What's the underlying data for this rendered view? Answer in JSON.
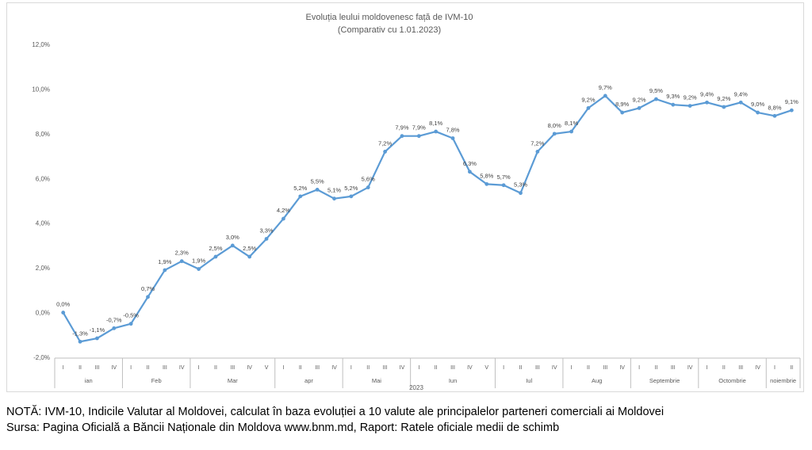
{
  "chart_data": {
    "type": "line",
    "title": "Evoluția leului moldovenesc față de IVM-10",
    "subtitle": "(Comparativ cu 1.01.2023)",
    "year_label": "2023",
    "ylim": [
      -2.0,
      12.0
    ],
    "yticks": [
      "-2,0%",
      "0,0%",
      "2,0%",
      "4,0%",
      "6,0%",
      "8,0%",
      "10,0%",
      "12,0%"
    ],
    "yticks_values": [
      -2,
      0,
      2,
      4,
      6,
      8,
      10,
      12
    ],
    "grid": false,
    "legend": "none",
    "line_color": "#5b9bd5",
    "months": [
      {
        "name": "ian",
        "weeks": [
          "I",
          "II",
          "III",
          "IV"
        ]
      },
      {
        "name": "Feb",
        "weeks": [
          "I",
          "II",
          "III",
          "IV"
        ]
      },
      {
        "name": "Mar",
        "weeks": [
          "I",
          "II",
          "III",
          "IV",
          "V"
        ]
      },
      {
        "name": "apr",
        "weeks": [
          "I",
          "II",
          "III",
          "IV"
        ]
      },
      {
        "name": "Mai",
        "weeks": [
          "I",
          "II",
          "III",
          "IV"
        ]
      },
      {
        "name": "Iun",
        "weeks": [
          "I",
          "II",
          "III",
          "IV",
          "V"
        ]
      },
      {
        "name": "Iul",
        "weeks": [
          "I",
          "II",
          "III",
          "IV"
        ]
      },
      {
        "name": "Aug",
        "weeks": [
          "I",
          "II",
          "III",
          "IV"
        ]
      },
      {
        "name": "Septembrie",
        "weeks": [
          "I",
          "II",
          "III",
          "IV"
        ]
      },
      {
        "name": "Octombrie",
        "weeks": [
          "I",
          "II",
          "III",
          "IV"
        ]
      },
      {
        "name": "noiembrie",
        "weeks": [
          "I",
          "II"
        ]
      }
    ],
    "values": [
      0.0,
      -1.3,
      -1.15,
      -0.7,
      -0.5,
      0.7,
      1.9,
      2.3,
      1.95,
      2.5,
      3.0,
      2.5,
      3.3,
      4.2,
      5.2,
      5.5,
      5.1,
      5.2,
      5.6,
      7.2,
      7.9,
      7.9,
      8.1,
      7.8,
      6.3,
      5.75,
      5.7,
      5.35,
      7.2,
      8.0,
      8.1,
      9.15,
      9.7,
      8.95,
      9.15,
      9.55,
      9.3,
      9.25,
      9.4,
      9.2,
      9.4,
      8.95,
      8.8,
      9.05
    ],
    "data_labels": [
      "0,0%",
      "-1,3%",
      "-1,1%",
      "-0,7%",
      "-0,5%",
      "0,7%",
      "1,9%",
      "2,3%",
      "1,9%",
      "2,5%",
      "3,0%",
      "2,5%",
      "3,3%",
      "4,2%",
      "5,2%",
      "5,5%",
      "5,1%",
      "5,2%",
      "5,6%",
      "7,2%",
      "7,9%",
      "7,9%",
      "8,1%",
      "7,8%",
      "6,3%",
      "5,8%",
      "5,7%",
      "5,3%",
      "7,2%",
      "8,0%",
      "8,1%",
      "9,2%",
      "9,7%",
      "8,9%",
      "9,2%",
      "9,5%",
      "9,3%",
      "9,2%",
      "9,4%",
      "9,2%",
      "9,4%",
      "9,0%",
      "8,8%",
      "9,1%"
    ]
  },
  "note": "NOTĂ: IVM-10, Indicile Valutar al Moldovei, calculat în baza evoluției a 10 valute ale principalelor parteneri comerciali ai Moldovei",
  "source": "Sursa: Pagina Oficială a Băncii Naționale din Moldova www.bnm.md, Raport: Ratele oficiale medii de schimb"
}
